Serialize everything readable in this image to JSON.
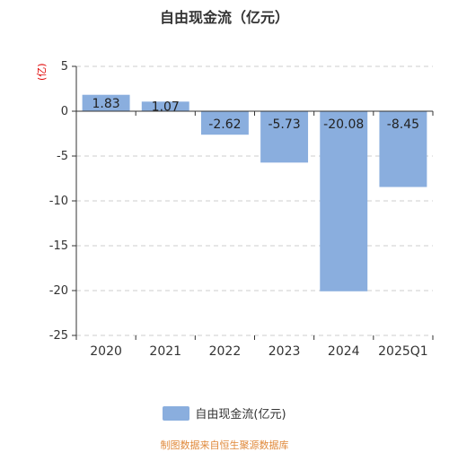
{
  "title": "自由现金流（亿元）",
  "unit_label": "(亿)",
  "footer_text": "制图数据来自恒生聚源数据库",
  "colors": {
    "bar": "#8aaede",
    "axis": "#333333",
    "grid": "#cccccc",
    "unit": "#e00000",
    "footer": "#e08a3c"
  },
  "chart_data": {
    "type": "bar",
    "title": "自由现金流（亿元）",
    "ylabel": "(亿)",
    "xlabel": "",
    "categories": [
      "2020",
      "2021",
      "2022",
      "2023",
      "2024",
      "2025Q1"
    ],
    "series": [
      {
        "name": "自由现金流(亿元)",
        "values": [
          1.83,
          1.07,
          -2.62,
          -5.73,
          -20.08,
          -8.45
        ]
      }
    ],
    "ylim": [
      -25,
      5
    ],
    "yticks": [
      5,
      0,
      -5,
      -10,
      -15,
      -20,
      -25
    ],
    "grid": true,
    "legend_position": "bottom"
  }
}
